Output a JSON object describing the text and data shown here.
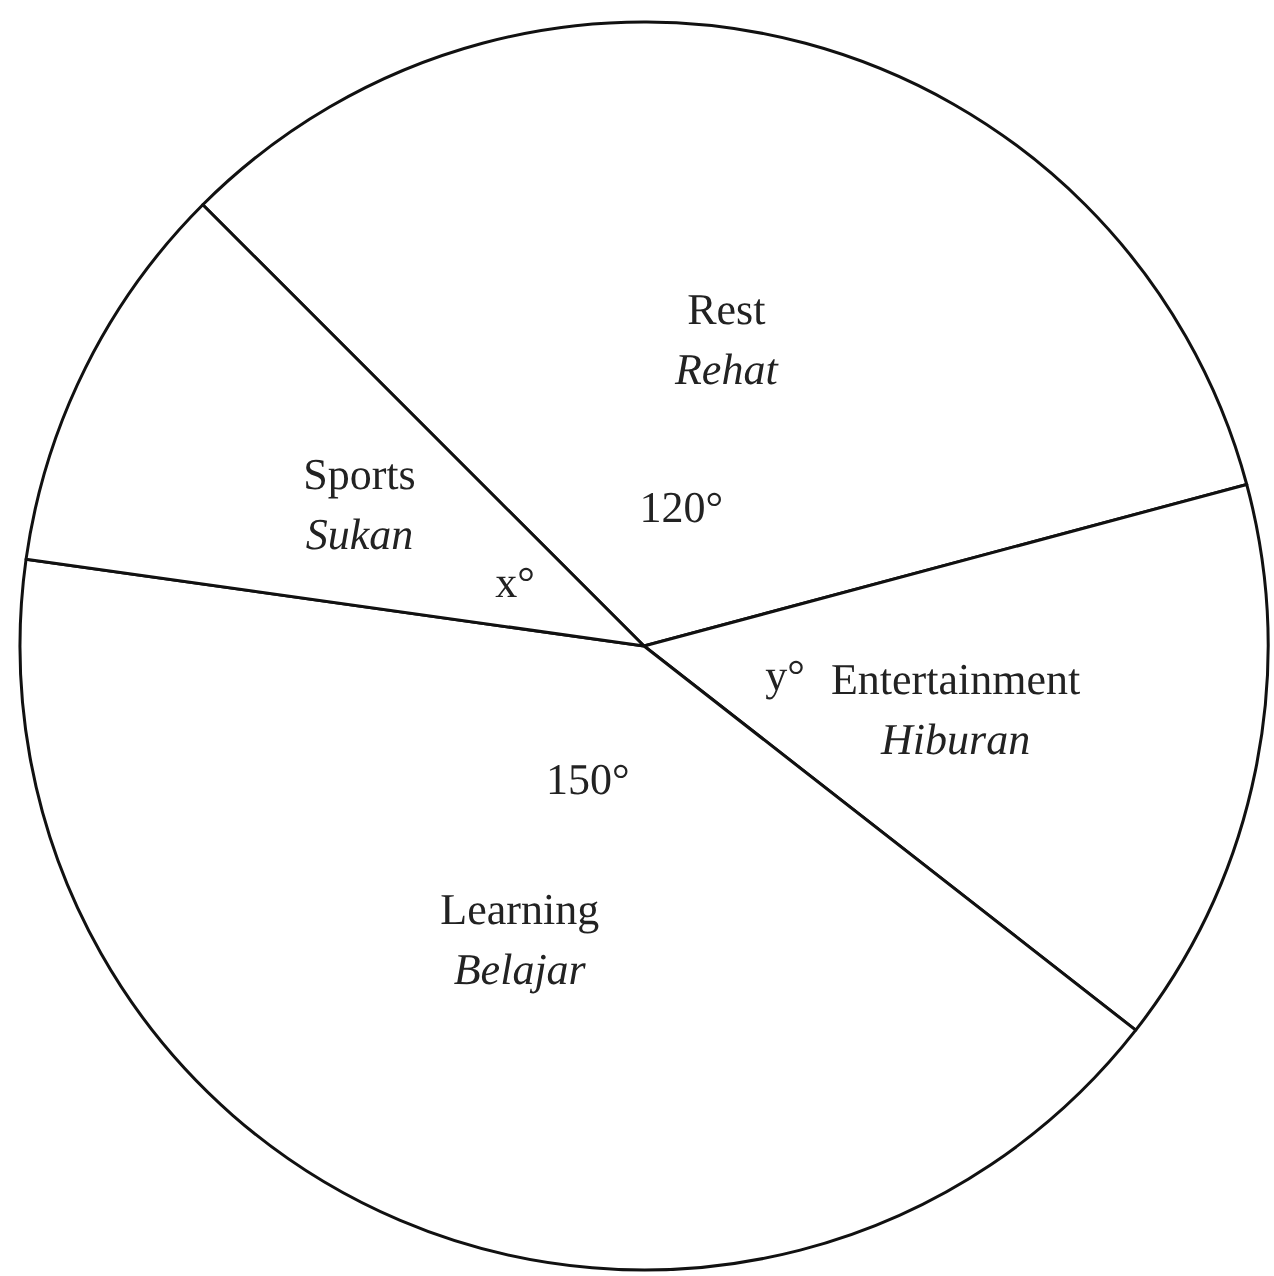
{
  "chart_data": {
    "type": "pie",
    "categories": [
      "Rest\nRehat",
      "Entertainment\nHiburan",
      "Learning\nBelajar",
      "Sports\nSukan"
    ],
    "values": [
      120,
      53,
      150,
      37
    ],
    "value_labels": [
      "120°",
      "y°",
      "150°",
      "x°"
    ],
    "colors": [
      "#ffffff",
      "#ffffff",
      "#ffffff",
      "#ffffff"
    ],
    "legend": false
  }
}
